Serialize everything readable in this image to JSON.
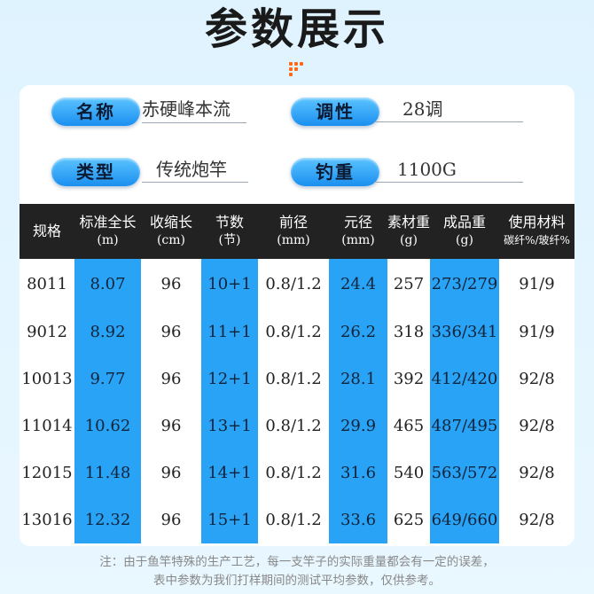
{
  "title": "参数展示",
  "info": {
    "name_label": "名称",
    "name_value": "赤硬峰本流",
    "action_label": "调性",
    "action_value": "28调",
    "type_label": "类型",
    "type_value": "传统炮竿",
    "weight_label": "钓重",
    "weight_value": "1100G"
  },
  "table": {
    "headers": [
      {
        "main": "规格",
        "sub": ""
      },
      {
        "main": "标准全长",
        "sub": "(m)"
      },
      {
        "main": "收缩长",
        "sub": "(cm)"
      },
      {
        "main": "节数",
        "sub": "(节)"
      },
      {
        "main": "前径",
        "sub": "(mm)"
      },
      {
        "main": "元径",
        "sub": "(mm)"
      },
      {
        "main": "素材重",
        "sub": "(g)"
      },
      {
        "main": "成品重",
        "sub": "(g)"
      },
      {
        "main": "使用材料",
        "sub": "碳纤%/玻纤%"
      }
    ],
    "rows": [
      [
        "8011",
        "8.07",
        "96",
        "10+1",
        "0.8/1.2",
        "24.4",
        "257",
        "273/279",
        "91/9"
      ],
      [
        "9012",
        "8.92",
        "96",
        "11+1",
        "0.8/1.2",
        "26.2",
        "318",
        "336/341",
        "91/9"
      ],
      [
        "10013",
        "9.77",
        "96",
        "12+1",
        "0.8/1.2",
        "28.1",
        "392",
        "412/420",
        "92/8"
      ],
      [
        "11014",
        "10.62",
        "96",
        "13+1",
        "0.8/1.2",
        "29.9",
        "465",
        "487/495",
        "92/8"
      ],
      [
        "12015",
        "11.48",
        "96",
        "14+1",
        "0.8/1.2",
        "31.6",
        "540",
        "563/572",
        "92/8"
      ],
      [
        "13016",
        "12.32",
        "96",
        "15+1",
        "0.8/1.2",
        "33.6",
        "625",
        "649/660",
        "92/8"
      ]
    ]
  },
  "note": {
    "line1": "注：由于鱼竿特殊的生产工艺，每一支竿子的实际重量都会有一定的误差，",
    "line2": "表中参数为我们打样期间的测试平均参数，仅供参考。"
  },
  "colors": {
    "accent": "#29a3f5",
    "header_bg": "#222222",
    "pill": "#1a8ff0",
    "mark": "#ff6a1a"
  }
}
